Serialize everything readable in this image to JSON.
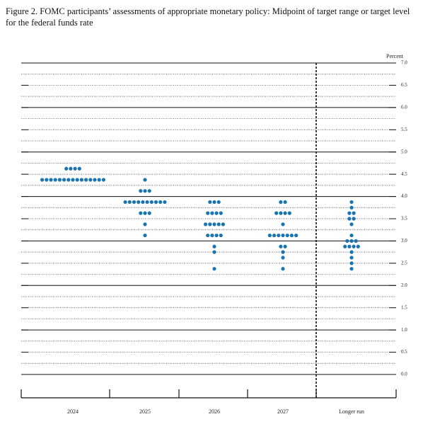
{
  "chart_data": {
    "type": "dot",
    "title": "Figure 2.  FOMC participants’ assessments of appropriate monetary policy: Midpoint of target range or target level for the federal funds rate",
    "y_unit_label": "Percent",
    "categories": [
      "2024",
      "2025",
      "2026",
      "2027",
      "Longer run"
    ],
    "dots": [
      [
        4.625,
        4.625,
        4.625,
        4.625,
        4.375,
        4.375,
        4.375,
        4.375,
        4.375,
        4.375,
        4.375,
        4.375,
        4.375,
        4.375,
        4.375,
        4.375,
        4.375,
        4.375,
        4.375
      ],
      [
        4.375,
        4.125,
        4.125,
        4.125,
        3.875,
        3.875,
        3.875,
        3.875,
        3.875,
        3.875,
        3.875,
        3.875,
        3.875,
        3.875,
        3.625,
        3.625,
        3.625,
        3.375,
        3.125
      ],
      [
        3.875,
        3.875,
        3.875,
        3.625,
        3.625,
        3.625,
        3.625,
        3.375,
        3.375,
        3.375,
        3.375,
        3.375,
        3.125,
        3.125,
        3.125,
        3.125,
        2.875,
        2.75,
        2.375
      ],
      [
        3.875,
        3.875,
        3.625,
        3.625,
        3.625,
        3.625,
        3.375,
        3.125,
        3.125,
        3.125,
        3.125,
        3.125,
        3.125,
        3.125,
        2.875,
        2.875,
        2.75,
        2.625,
        2.375
      ],
      [
        3.875,
        3.75,
        3.625,
        3.625,
        3.5,
        3.5,
        3.375,
        3.125,
        3.0,
        3.0,
        3.0,
        2.875,
        2.875,
        2.875,
        2.875,
        2.75,
        2.625,
        2.5,
        2.375
      ]
    ],
    "color": "#1a74b0",
    "ylim": [
      0,
      7
    ],
    "yticks": [
      {
        "value": 0,
        "label": "0.0"
      },
      {
        "value": 0.5,
        "label": "0.5"
      },
      {
        "value": 1,
        "label": "1.0"
      },
      {
        "value": 1.5,
        "label": "1.5"
      },
      {
        "value": 2,
        "label": "2.0"
      },
      {
        "value": 2.5,
        "label": "2.5"
      },
      {
        "value": 3,
        "label": "3.0"
      },
      {
        "value": 3.5,
        "label": "3.5"
      },
      {
        "value": 4,
        "label": "4.0"
      },
      {
        "value": 4.5,
        "label": "4.5"
      },
      {
        "value": 5,
        "label": "5.0"
      },
      {
        "value": 5.5,
        "label": "5.5"
      },
      {
        "value": 6,
        "label": "6.0"
      },
      {
        "value": 6.5,
        "label": "6.5"
      },
      {
        "value": 7,
        "label": "7.0"
      }
    ],
    "minor_yticks": [
      0.25,
      0.75,
      1.25,
      1.75,
      2.25,
      2.75,
      3.25,
      3.75,
      4.25,
      4.75,
      5.25,
      5.75,
      6.25,
      6.75
    ],
    "grid": true
  }
}
